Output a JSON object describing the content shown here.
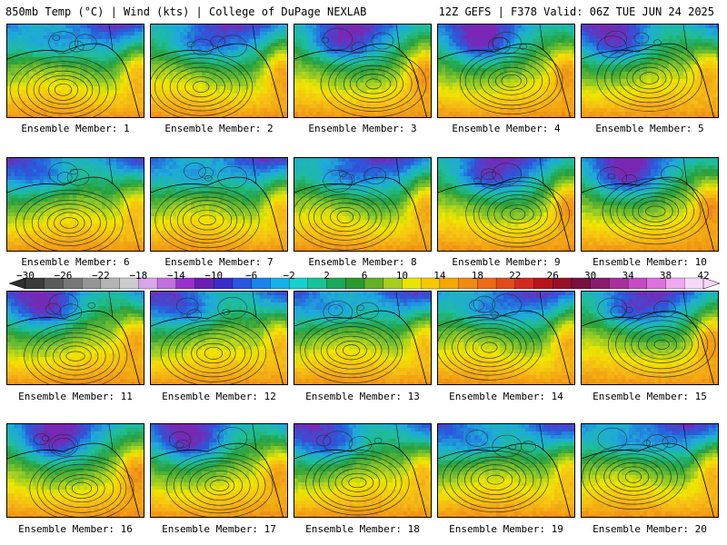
{
  "header": {
    "left": "850mb Temp (°C) | Wind (kts) | College of DuPage NEXLAB",
    "right": "12Z GEFS | F378 Valid: 06Z TUE JUN 24 2025"
  },
  "members": [
    "Ensemble Member: 1",
    "Ensemble Member: 2",
    "Ensemble Member: 3",
    "Ensemble Member: 4",
    "Ensemble Member: 5",
    "Ensemble Member: 6",
    "Ensemble Member: 7",
    "Ensemble Member: 8",
    "Ensemble Member: 9",
    "Ensemble Member: 10",
    "Ensemble Member: 11",
    "Ensemble Member: 12",
    "Ensemble Member: 13",
    "Ensemble Member: 14",
    "Ensemble Member: 15",
    "Ensemble Member: 16",
    "Ensemble Member: 17",
    "Ensemble Member: 18",
    "Ensemble Member: 19",
    "Ensemble Member: 20"
  ],
  "colorbar": {
    "labels": [
      "−30",
      "−26",
      "−22",
      "−18",
      "−14",
      "−10",
      "−6",
      "−2",
      "2",
      "6",
      "10",
      "14",
      "18",
      "22",
      "26",
      "30",
      "34",
      "38",
      "42"
    ],
    "colors": [
      "#3a3a3a",
      "#5a5a5a",
      "#777777",
      "#959595",
      "#b4b4b4",
      "#cccccc",
      "#d8a6e8",
      "#c070e0",
      "#9a2fd0",
      "#6a1fb0",
      "#3b2bc8",
      "#2a55e0",
      "#1a84ea",
      "#18b0ea",
      "#16d0d0",
      "#18c296",
      "#1aa85a",
      "#2a9a2e",
      "#64b028",
      "#a8cc20",
      "#e8e600",
      "#f6c800",
      "#f4a800",
      "#f08a10",
      "#ec6a18",
      "#e24a1c",
      "#d22a22",
      "#b8141c",
      "#98102a",
      "#7a1040",
      "#8a1a6a",
      "#a8309a",
      "#c64ac4",
      "#e070e0",
      "#f0a8f0",
      "#f8d8f8"
    ]
  }
}
